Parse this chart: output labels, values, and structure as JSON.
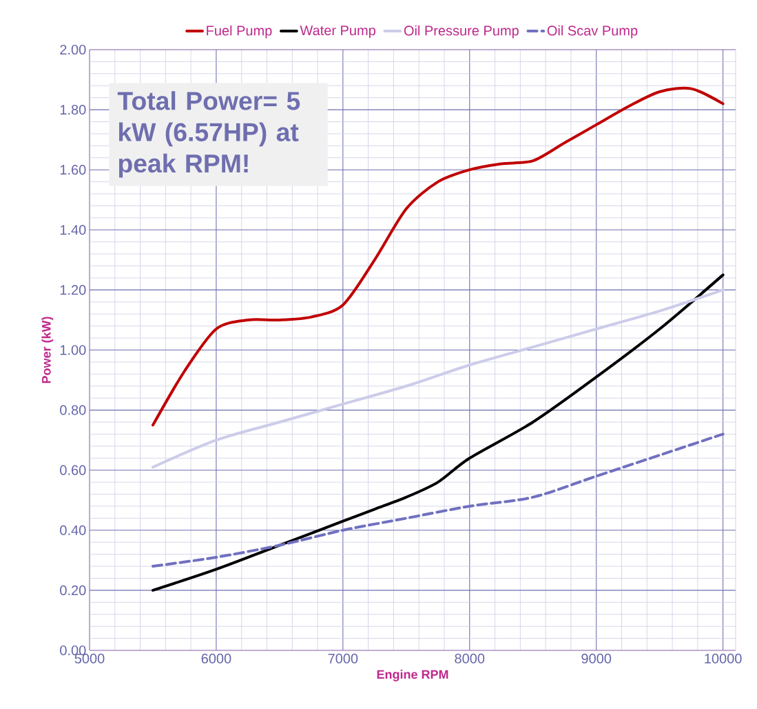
{
  "chart_data": {
    "type": "line",
    "xlabel": "Engine RPM",
    "ylabel": "Power (kW)",
    "annotations": [
      "Total Power= 5 kW (6.57HP) at peak RPM!"
    ],
    "xlim": [
      5000,
      10100
    ],
    "xticks": [
      5000,
      6000,
      7000,
      8000,
      9000,
      10000
    ],
    "ylim": [
      0,
      2
    ],
    "yticks": [
      {
        "value": 0,
        "label": "0.00"
      },
      {
        "value": 0.2,
        "label": "0.20"
      },
      {
        "value": 0.4,
        "label": "0.40"
      },
      {
        "value": 0.6,
        "label": "0.60"
      },
      {
        "value": 0.8,
        "label": "0.80"
      },
      {
        "value": 1.0,
        "label": "1.00"
      },
      {
        "value": 1.2,
        "label": "1.20"
      },
      {
        "value": 1.4,
        "label": "1.40"
      },
      {
        "value": 1.6,
        "label": "1.60"
      },
      {
        "value": 1.8,
        "label": "1.80"
      },
      {
        "value": 2.0,
        "label": "2.00"
      }
    ],
    "grid": true,
    "legend": "top",
    "marker": "none",
    "series": [
      {
        "name": "Fuel Pump",
        "color": "#c00000",
        "line_style": "solid",
        "x": [
          5500,
          5750,
          6000,
          6250,
          6500,
          6750,
          7000,
          7250,
          7500,
          7750,
          8000,
          8250,
          8500,
          8750,
          9000,
          9250,
          9500,
          9750,
          10000
        ],
        "values": [
          0.75,
          0.93,
          1.07,
          1.1,
          1.1,
          1.11,
          1.15,
          1.3,
          1.47,
          1.56,
          1.6,
          1.62,
          1.63,
          1.69,
          1.75,
          1.81,
          1.86,
          1.87,
          1.82
        ]
      },
      {
        "name": "Water Pump",
        "color": "#000000",
        "line_style": "solid",
        "x": [
          5500,
          6000,
          6500,
          7000,
          7250,
          7500,
          7750,
          8000,
          8500,
          9000,
          9500,
          10000
        ],
        "values": [
          0.2,
          0.27,
          0.35,
          0.43,
          0.47,
          0.51,
          0.56,
          0.64,
          0.76,
          0.91,
          1.07,
          1.25
        ]
      },
      {
        "name": "Oil Pressure Pump",
        "color": "#ccccea",
        "line_style": "solid",
        "x": [
          5500,
          6000,
          6500,
          7000,
          7500,
          8000,
          8500,
          9000,
          9500,
          10000
        ],
        "values": [
          0.61,
          0.7,
          0.76,
          0.82,
          0.88,
          0.95,
          1.01,
          1.07,
          1.13,
          1.2
        ]
      },
      {
        "name": "Oil Scav Pump",
        "color": "#7070c0",
        "line_style": "dashed",
        "x": [
          5500,
          6000,
          6500,
          7000,
          7500,
          8000,
          8500,
          9000,
          9500,
          10000
        ],
        "values": [
          0.28,
          0.31,
          0.35,
          0.4,
          0.44,
          0.48,
          0.51,
          0.58,
          0.65,
          0.72
        ]
      }
    ]
  }
}
